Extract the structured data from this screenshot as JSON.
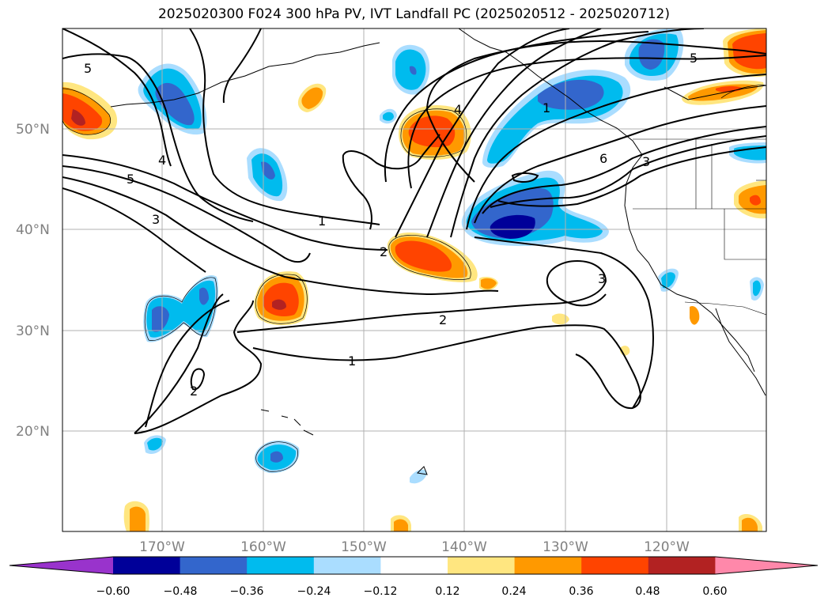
{
  "title": "2025020300 F024 300 hPa PV, IVT Landfall PC (2025020512 - 2025020712)",
  "lat_labels": [
    "50°N",
    "40°N",
    "30°N",
    "20°N"
  ],
  "lon_labels": [
    "170°W",
    "160°W",
    "150°W",
    "140°W",
    "130°W",
    "120°W"
  ],
  "colorbar": {
    "colors": [
      "#9933cc",
      "#000099",
      "#3366cc",
      "#00bbee",
      "#aaddff",
      "#ffffff",
      "#ffe680",
      "#ff9900",
      "#ff4400",
      "#b22222",
      "#ff88aa"
    ],
    "ticks": [
      "−0.60",
      "−0.48",
      "−0.36",
      "−0.24",
      "−0.12",
      "0.12",
      "0.24",
      "0.36",
      "0.48",
      "0.60"
    ]
  },
  "contour_labels": [
    "5",
    "4",
    "5",
    "3",
    "1",
    "2",
    "2",
    "1",
    "2",
    "3",
    "6",
    "3",
    "5",
    "4",
    "1"
  ]
}
